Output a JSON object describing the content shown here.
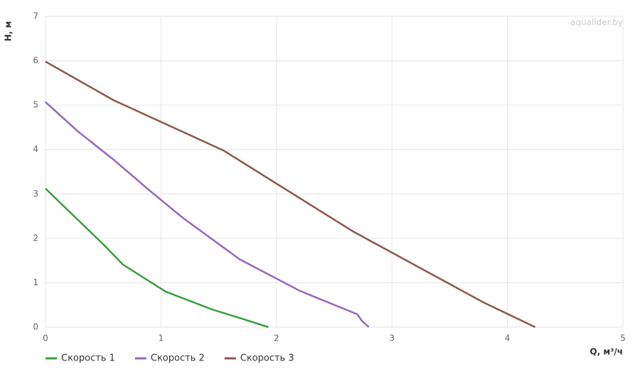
{
  "chart_data": {
    "type": "line",
    "watermark": "aqualider.by",
    "x_label": "Q, м³/ч",
    "y_label": "H, м",
    "xlim": [
      0,
      5
    ],
    "xticks": [
      0,
      1,
      2,
      3,
      4,
      5
    ],
    "ylim": [
      0,
      7
    ],
    "yticks": [
      0,
      1,
      2,
      3,
      4,
      5,
      6,
      7
    ],
    "grid": true,
    "legend": "bottom-left",
    "series": [
      {
        "name": "Скорость 1",
        "color": "#3a9e3a",
        "x": [
          0,
          0.51,
          0.67,
          1.04,
          1.44,
          1.7,
          1.93
        ],
        "values": [
          3.12,
          1.84,
          1.41,
          0.8,
          0.4,
          0.19,
          0
        ]
      },
      {
        "name": "Скорость 2",
        "color": "#9467bd",
        "x": [
          0,
          0.28,
          0.59,
          0.9,
          1.19,
          1.68,
          2.2,
          2.7,
          2.74,
          2.8
        ],
        "values": [
          5.07,
          4.41,
          3.77,
          3.08,
          2.46,
          1.53,
          0.82,
          0.29,
          0.14,
          0
        ]
      },
      {
        "name": "Скорость 3",
        "color": "#8c564b",
        "x": [
          0,
          0.59,
          1.54,
          2.66,
          3.79,
          4.24
        ],
        "values": [
          5.98,
          5.11,
          3.98,
          2.16,
          0.56,
          0
        ]
      }
    ]
  }
}
